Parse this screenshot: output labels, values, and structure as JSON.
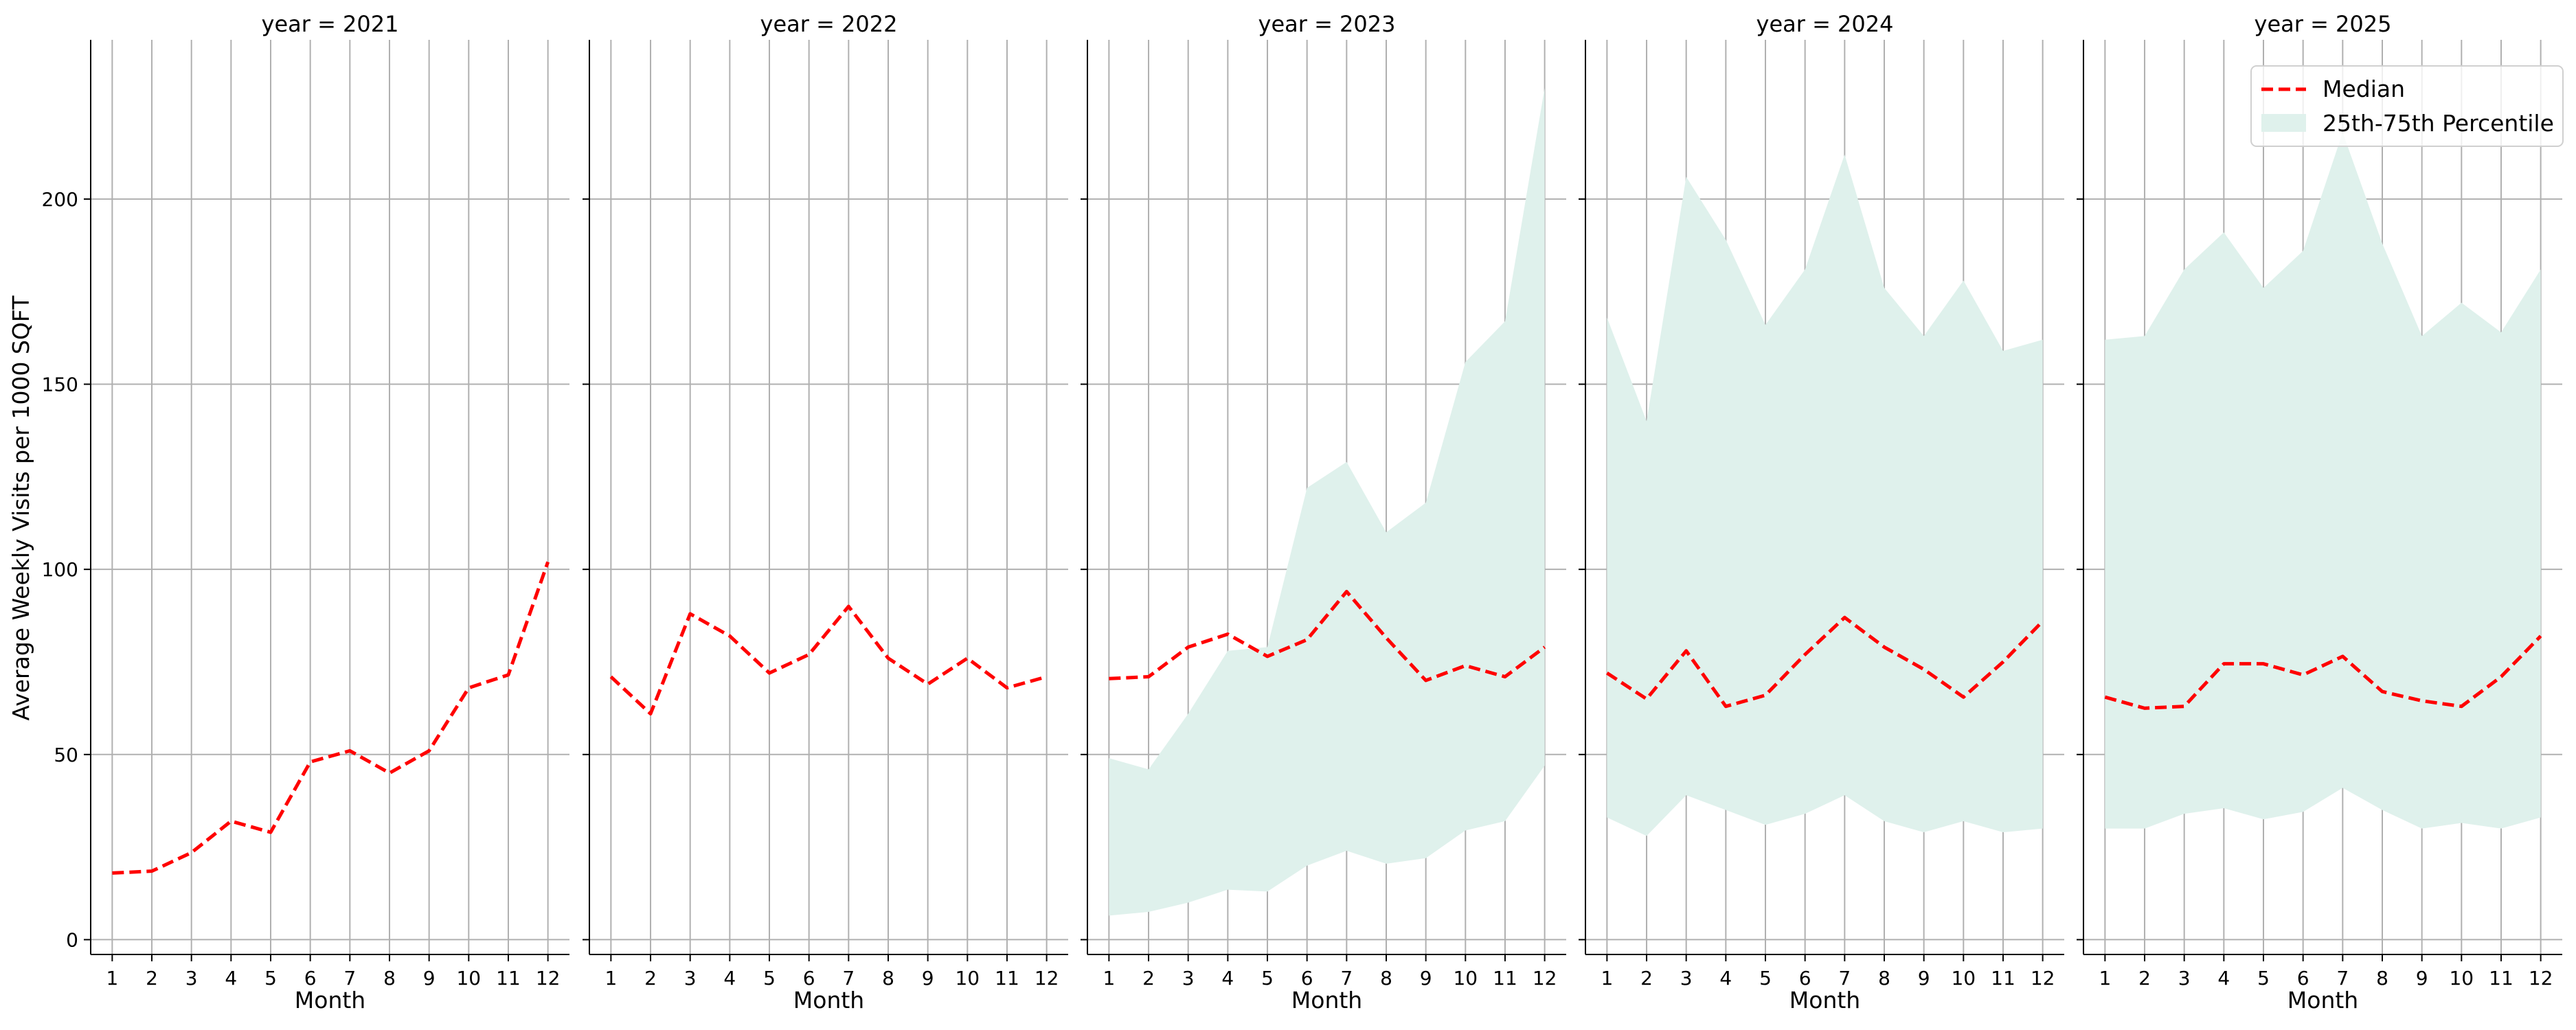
{
  "chart_data": {
    "type": "line",
    "ylabel": "Average Weekly Visits per 1000 SQFT",
    "xlabel": "Month",
    "x": [
      1,
      2,
      3,
      4,
      5,
      6,
      7,
      8,
      9,
      10,
      11,
      12
    ],
    "ylim": [
      -4,
      243
    ],
    "yticks": [
      0,
      50,
      100,
      150,
      200
    ],
    "grid": true,
    "legend": {
      "placement": "top-right",
      "entries": [
        "Median",
        "25th-75th Percentile"
      ]
    },
    "colors": {
      "median": "#ff0000",
      "band": "#dff1ec",
      "grid": "#b0b0b0",
      "axis": "#000000"
    },
    "panels": [
      {
        "title": "year = 2021",
        "median": [
          18,
          18.5,
          23.5,
          32,
          29,
          48,
          51,
          45,
          51,
          68,
          71.5,
          102
        ],
        "p25": null,
        "p75": null
      },
      {
        "title": "year = 2022",
        "median": [
          71,
          61,
          88,
          82,
          72,
          77,
          90,
          76,
          69,
          76,
          68,
          71
        ],
        "p25": null,
        "p75": null
      },
      {
        "title": "year = 2023",
        "median": [
          70.5,
          71,
          79,
          82.5,
          76.5,
          81,
          94,
          81.5,
          70,
          74,
          71,
          79
        ],
        "p25": [
          6.5,
          7.5,
          10,
          13.5,
          13,
          20,
          24,
          20.5,
          22,
          29.5,
          32,
          47
        ],
        "p75": [
          49,
          46,
          61,
          78,
          79,
          122,
          129,
          110,
          118,
          156,
          167,
          230
        ]
      },
      {
        "title": "year = 2024",
        "median": [
          72,
          65,
          78,
          63,
          66,
          77,
          87,
          79,
          73,
          65.5,
          75,
          86
        ],
        "p25": [
          33,
          28,
          39,
          35,
          31,
          34,
          39,
          32,
          29,
          32,
          29,
          30
        ],
        "p75": [
          168,
          140,
          206,
          189,
          166,
          181,
          212,
          176,
          163,
          178,
          159,
          162
        ]
      },
      {
        "title": "year = 2025",
        "median": [
          65.5,
          62.5,
          63,
          74.5,
          74.5,
          71.5,
          76.5,
          67,
          64.5,
          63,
          71,
          82
        ],
        "p25": [
          30,
          30,
          34,
          35.5,
          32.5,
          34.5,
          41,
          35,
          30,
          31.5,
          30,
          33
        ],
        "p75": [
          162,
          163,
          181,
          191,
          176,
          186,
          218,
          188,
          163,
          172,
          164,
          181
        ]
      }
    ]
  }
}
